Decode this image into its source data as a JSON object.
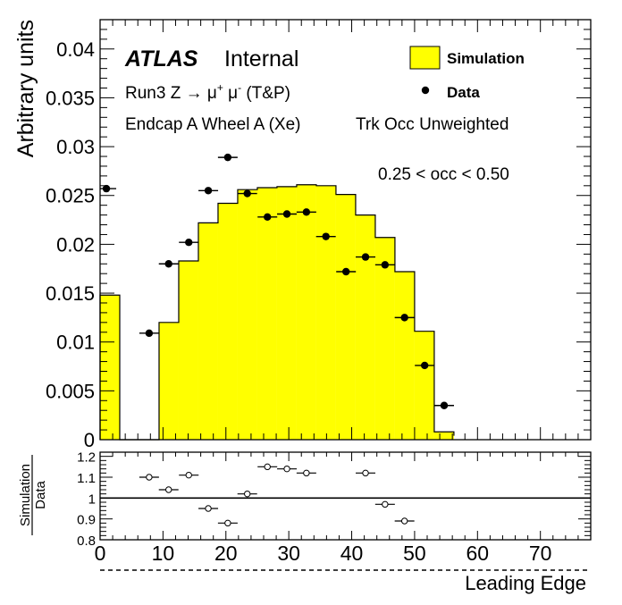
{
  "chart_data": {
    "type": "bar",
    "ylabel": "Arbitrary units",
    "xlabel": "Leading Edge",
    "xlim": [
      0,
      78
    ],
    "ylim": [
      0,
      0.043
    ],
    "x_ticks": [
      0,
      10,
      20,
      30,
      40,
      50,
      60,
      70
    ],
    "y_ticks": [
      0,
      0.005,
      0.01,
      0.015,
      0.02,
      0.025,
      0.03,
      0.035,
      0.04
    ],
    "y_tick_labels": [
      "0",
      "0.005",
      "0.01",
      "0.015",
      "0.02",
      "0.025",
      "0.03",
      "0.035",
      "0.04"
    ],
    "atlas_label": "ATLAS",
    "atlas_sublabel": "Internal",
    "annotations": {
      "line1_pre": "Run3 Z ",
      "line1_arrow": "→",
      "line1_mu": " μ",
      "line1_plus": "+",
      "line1_mu2": " μ",
      "line1_minus": "-",
      "line1_post": " (T&P)",
      "line2": "Endcap A Wheel A (Xe)",
      "line3": "Trk Occ Unweighted",
      "occupancy": "0.25 < occ < 0.50"
    },
    "legend": {
      "position": "top-right",
      "simulation": "Simulation",
      "data": "Data"
    },
    "colors": {
      "simulation_fill": "#ffff00",
      "data_marker": "#000000"
    },
    "bin_width": 3.125,
    "simulation": {
      "name": "Simulation",
      "bin_edges": [
        0,
        3.125,
        6.25,
        9.375,
        12.5,
        15.625,
        18.75,
        21.875,
        25,
        28.125,
        31.25,
        34.375,
        37.5,
        40.625,
        43.75,
        46.875,
        50,
        53.125,
        56.25
      ],
      "values": [
        0.0148,
        0,
        0,
        0.012,
        0.0183,
        0.0222,
        0.0242,
        0.0256,
        0.0258,
        0.0259,
        0.0261,
        0.026,
        0.0251,
        0.023,
        0.0207,
        0.0172,
        0.0111,
        0.0008,
        0.0004
      ]
    },
    "data": {
      "name": "Data",
      "x": [
        1.0,
        7.8,
        10.9,
        14.1,
        17.2,
        20.3,
        23.4,
        26.6,
        29.7,
        32.8,
        35.9,
        39.1,
        42.2,
        45.3,
        48.4,
        51.6,
        54.7
      ],
      "y": [
        0.0257,
        0.0109,
        0.018,
        0.0202,
        0.0255,
        0.0289,
        0.0252,
        0.0228,
        0.0231,
        0.0233,
        0.0208,
        0.0172,
        0.0187,
        0.0179,
        0.0125,
        0.0076,
        0.0035
      ]
    },
    "ratio": {
      "ylabel_top": "Simulation",
      "ylabel_bottom": "Data",
      "ylim": [
        0.8,
        1.22
      ],
      "y_ticks": [
        0.8,
        0.9,
        1,
        1.1,
        1.2
      ],
      "y_tick_labels": [
        "0.8",
        "0.9",
        "1",
        "1.1",
        "1.2"
      ],
      "reference_line": 1,
      "x": [
        7.8,
        10.9,
        14.1,
        17.2,
        20.3,
        23.4,
        26.6,
        29.7,
        32.8,
        42.2,
        45.3,
        48.4
      ],
      "y": [
        1.1,
        1.04,
        1.11,
        0.95,
        0.88,
        1.02,
        1.15,
        1.14,
        1.12,
        1.12,
        0.97,
        0.89
      ]
    }
  }
}
